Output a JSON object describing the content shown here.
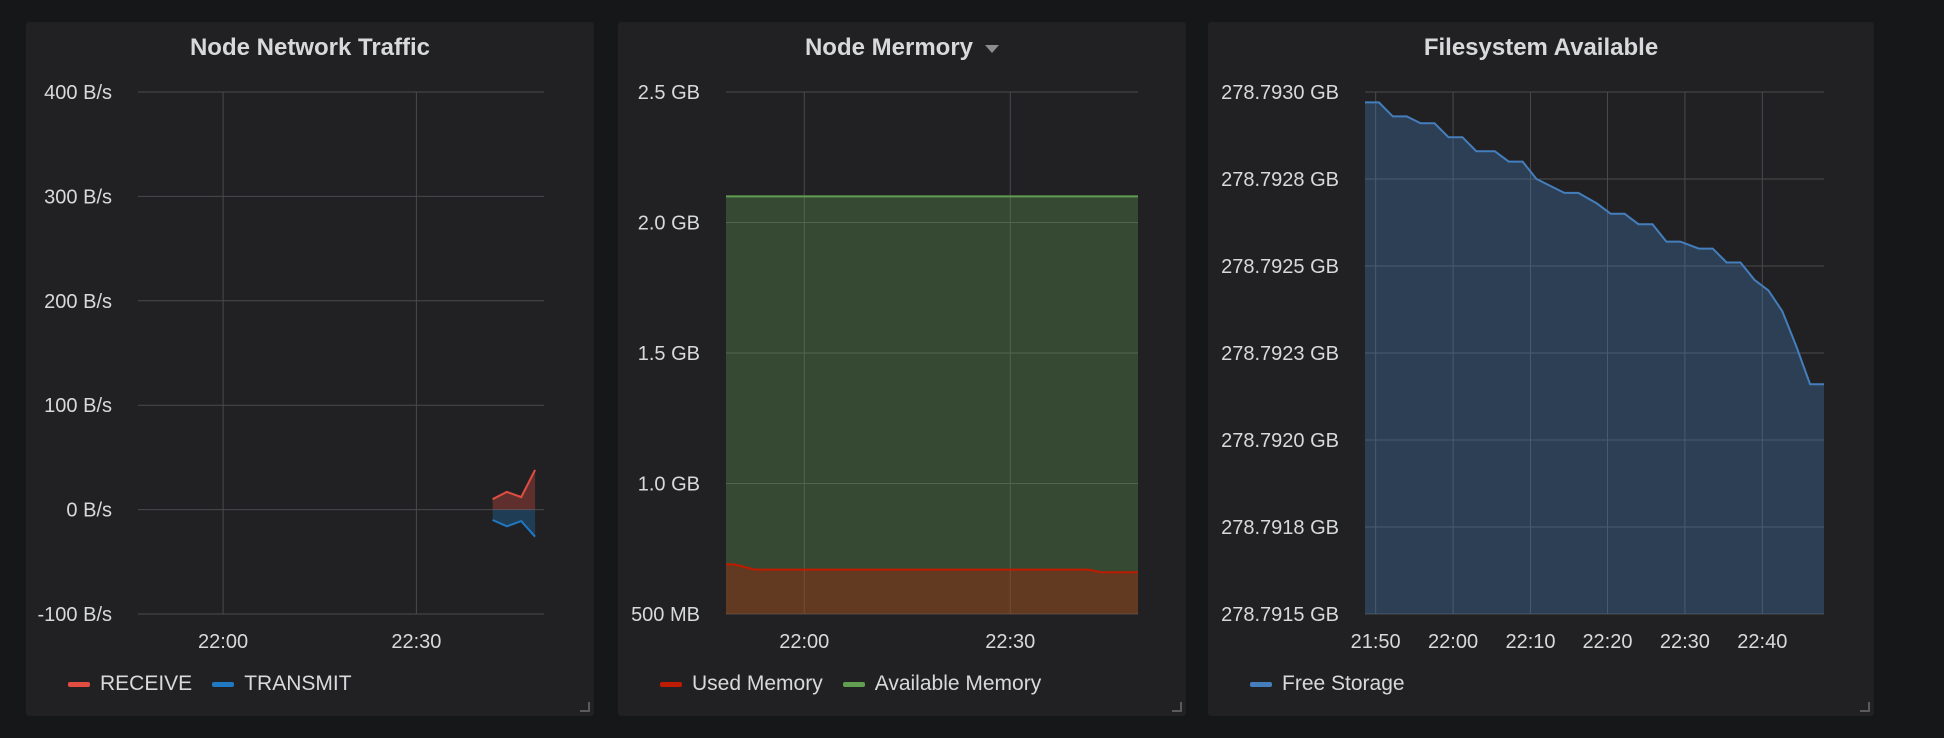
{
  "panels": [
    {
      "title": "Node Network Traffic"
    },
    {
      "title": "Node Mermory"
    },
    {
      "title": "Filesystem Available"
    }
  ],
  "colors": {
    "receive": "#e24d42",
    "transmit": "#1f78c1",
    "used_memory": "#bf1b00",
    "available_memory": "#629e51",
    "free_storage": "#447ebc"
  },
  "chart_data": [
    {
      "type": "area",
      "title": "Node Network Traffic",
      "y_ticks": [
        "400 B/s",
        "300 B/s",
        "200 B/s",
        "100 B/s",
        "0 B/s",
        "-100 B/s"
      ],
      "ylim": [
        -100,
        400
      ],
      "x_ticks": [
        "22:00",
        "22:30"
      ],
      "x_tick_values": [
        22.0,
        22.5
      ],
      "xlim": [
        21.78,
        22.83
      ],
      "x": [
        22.697,
        22.734,
        22.771,
        22.807
      ],
      "series": [
        {
          "name": "RECEIVE",
          "values": [
            10,
            17,
            12,
            38
          ]
        },
        {
          "name": "TRANSMIT",
          "values": [
            -10,
            -16,
            -11,
            -26
          ]
        }
      ],
      "grid": true,
      "legend": "bottom-left"
    },
    {
      "type": "area",
      "title": "Node Mermory",
      "y_ticks": [
        "2.5 GB",
        "2.0 GB",
        "1.5 GB",
        "1.0 GB",
        "500 MB"
      ],
      "ylim": [
        0.5,
        2.5
      ],
      "x_ticks": [
        "22:00",
        "22:30"
      ],
      "x_tick_values": [
        22.0,
        22.5
      ],
      "xlim": [
        21.81,
        22.81
      ],
      "x": [
        21.81,
        21.83,
        21.88,
        22.3,
        22.5,
        22.69,
        22.72,
        22.81
      ],
      "series": [
        {
          "name": "Used Memory",
          "values": [
            0.69,
            0.69,
            0.67,
            0.67,
            0.67,
            0.67,
            0.66,
            0.66
          ]
        },
        {
          "name": "Available Memory",
          "values": [
            2.1,
            2.1,
            2.1,
            2.1,
            2.1,
            2.1,
            2.1,
            2.1
          ]
        }
      ],
      "grid": true,
      "legend": "bottom-left"
    },
    {
      "type": "area",
      "title": "Filesystem Available",
      "y_ticks": [
        "278.7930 GB",
        "278.7928 GB",
        "278.7925 GB",
        "278.7923 GB",
        "278.7920 GB",
        "278.7918 GB",
        "278.7915 GB"
      ],
      "ylim": [
        278.7915,
        278.793
      ],
      "x_ticks": [
        "21:50",
        "22:00",
        "22:10",
        "22:20",
        "22:30",
        "22:40"
      ],
      "x_tick_values": [
        21.833,
        22.0,
        22.167,
        22.333,
        22.5,
        22.667
      ],
      "xlim": [
        21.81,
        22.8
      ],
      "x": [
        21.81,
        21.84,
        21.87,
        21.9,
        21.93,
        21.96,
        21.99,
        22.02,
        22.05,
        22.09,
        22.12,
        22.15,
        22.18,
        22.21,
        22.24,
        22.27,
        22.31,
        22.34,
        22.37,
        22.4,
        22.43,
        22.46,
        22.49,
        22.53,
        22.56,
        22.59,
        22.62,
        22.65,
        22.68,
        22.71,
        22.74,
        22.77,
        22.8
      ],
      "series": [
        {
          "name": "Free Storage",
          "values": [
            278.79297,
            278.79297,
            278.79293,
            278.79293,
            278.79291,
            278.79291,
            278.79287,
            278.79287,
            278.79283,
            278.79283,
            278.7928,
            278.7928,
            278.79275,
            278.79273,
            278.79271,
            278.79271,
            278.79268,
            278.79265,
            278.79265,
            278.79262,
            278.79262,
            278.79257,
            278.79257,
            278.79255,
            278.79255,
            278.79251,
            278.79251,
            278.79246,
            278.79243,
            278.79237,
            278.79227,
            278.79216,
            278.79216
          ]
        }
      ],
      "grid": true,
      "legend": "bottom-left"
    }
  ]
}
